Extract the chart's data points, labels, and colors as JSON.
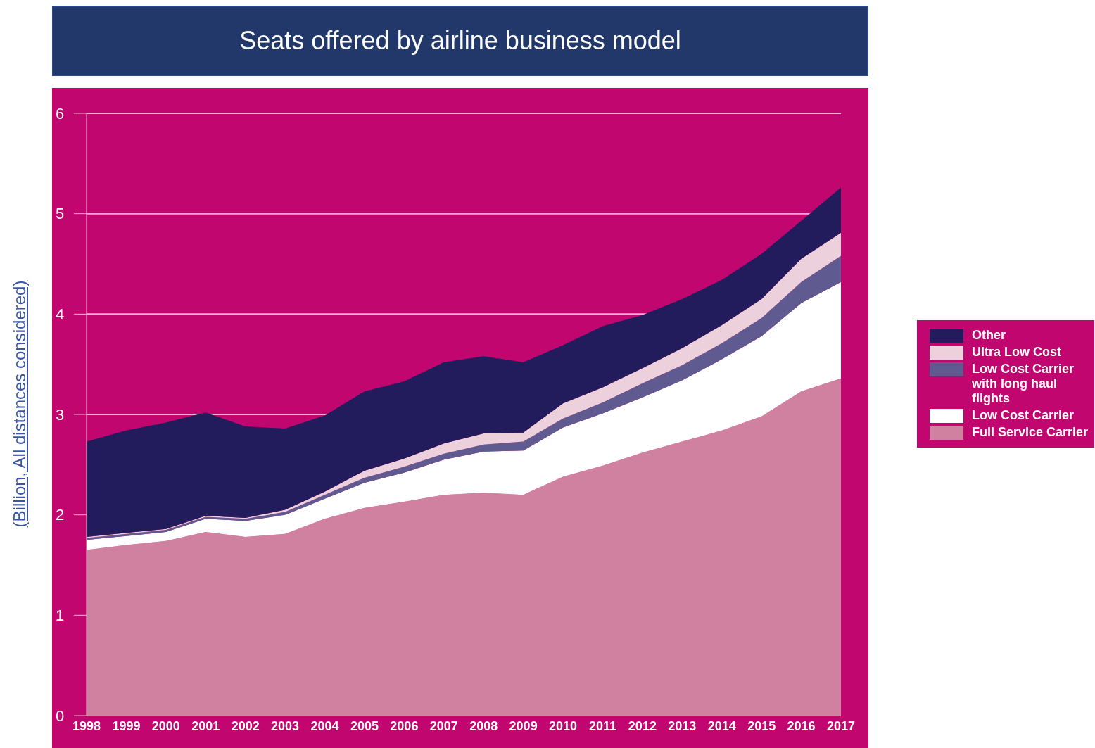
{
  "chart_data": {
    "type": "area",
    "title": "Seats offered by airline business model",
    "ylabel": "(Billion, All distances considered)",
    "categories": [
      "1998",
      "1999",
      "2000",
      "2001",
      "2002",
      "2003",
      "2004",
      "2005",
      "2006",
      "2007",
      "2008",
      "2009",
      "2010",
      "2011",
      "2012",
      "2013",
      "2014",
      "2015",
      "2016",
      "2017"
    ],
    "stacked": true,
    "ylim": [
      0,
      6
    ],
    "yticks": [
      0,
      1,
      2,
      3,
      4,
      5,
      6
    ],
    "grid": "y",
    "legend": "right",
    "series": [
      {
        "name": "Full Service Carrier",
        "color": "#d0819f",
        "values": [
          1.65,
          1.7,
          1.74,
          1.83,
          1.78,
          1.81,
          1.96,
          2.07,
          2.13,
          2.2,
          2.22,
          2.2,
          2.38,
          2.49,
          2.62,
          2.73,
          2.84,
          2.98,
          3.23,
          3.36
        ]
      },
      {
        "name": "Low Cost Carrier",
        "color": "#ffffff",
        "values": [
          0.1,
          0.09,
          0.09,
          0.13,
          0.16,
          0.19,
          0.2,
          0.25,
          0.29,
          0.35,
          0.41,
          0.44,
          0.49,
          0.52,
          0.55,
          0.61,
          0.71,
          0.8,
          0.88,
          0.96
        ]
      },
      {
        "name": "Low Cost Carrier with long haul flights",
        "color": "#5f5a8f",
        "values": [
          0.02,
          0.02,
          0.02,
          0.02,
          0.02,
          0.03,
          0.04,
          0.05,
          0.06,
          0.06,
          0.07,
          0.09,
          0.09,
          0.11,
          0.14,
          0.15,
          0.16,
          0.18,
          0.21,
          0.26
        ]
      },
      {
        "name": "Ultra Low Cost",
        "color": "#ecd0dc",
        "values": [
          0.01,
          0.01,
          0.01,
          0.01,
          0.01,
          0.02,
          0.03,
          0.07,
          0.08,
          0.1,
          0.11,
          0.09,
          0.15,
          0.15,
          0.15,
          0.17,
          0.18,
          0.19,
          0.23,
          0.23
        ]
      },
      {
        "name": "Other",
        "color": "#221c5c",
        "values": [
          0.95,
          1.02,
          1.06,
          1.03,
          0.91,
          0.81,
          0.76,
          0.79,
          0.77,
          0.81,
          0.77,
          0.7,
          0.58,
          0.61,
          0.53,
          0.49,
          0.45,
          0.45,
          0.38,
          0.45
        ]
      }
    ]
  }
}
